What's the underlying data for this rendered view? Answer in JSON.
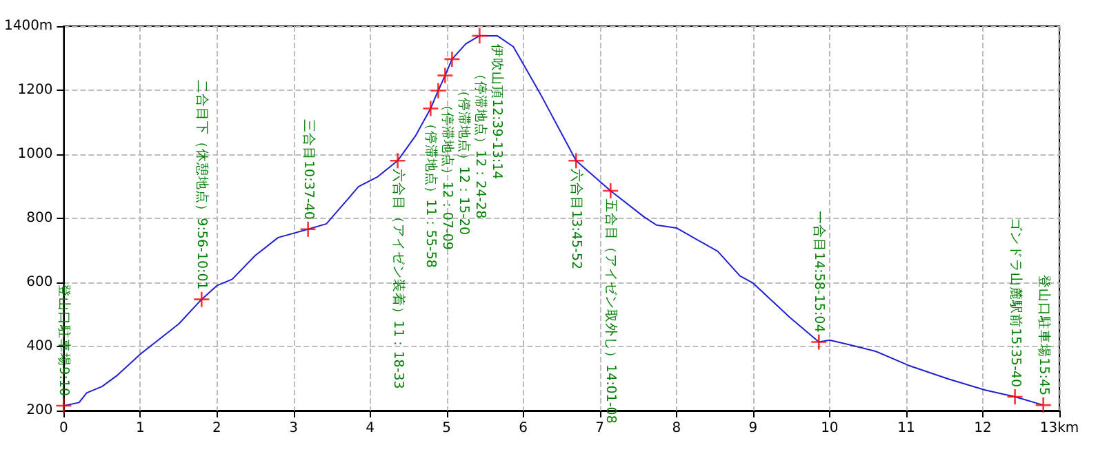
{
  "chart_data": {
    "type": "line",
    "xlim": [
      0,
      13
    ],
    "xticks": [
      0,
      1,
      2,
      3,
      4,
      5,
      6,
      7,
      8,
      9,
      10,
      11,
      12,
      {
        "value": 13,
        "label": "13km"
      }
    ],
    "ylim": [
      200,
      1400
    ],
    "yticks": [
      200,
      400,
      600,
      800,
      1000,
      1200,
      {
        "value": 1400,
        "label": "1400m"
      }
    ],
    "grid": true,
    "line_style": "solid",
    "series": [
      {
        "color": "#2020d0",
        "marker": "none",
        "x": [
          0,
          0.2,
          0.3,
          0.5,
          0.7,
          1.0,
          1.5,
          1.8,
          2.0,
          2.2,
          2.5,
          2.8,
          3.19,
          3.43,
          3.85,
          4.1,
          4.36,
          4.6,
          4.79,
          4.89,
          4.98,
          5.07,
          5.25,
          5.43,
          5.66,
          5.87,
          6.22,
          6.69,
          7.14,
          7.58,
          7.74,
          8.0,
          8.54,
          8.83,
          9.0,
          9.48,
          9.86,
          10.0,
          10.25,
          10.6,
          11.03,
          11.56,
          12.03,
          12.42,
          12.79
        ],
        "values": [
          215,
          225,
          255,
          275,
          310,
          376,
          470,
          547,
          590,
          610,
          684,
          740,
          766,
          783,
          899,
          930,
          980,
          1060,
          1143,
          1199,
          1246,
          1297,
          1345,
          1370,
          1370,
          1336,
          1190,
          980,
          886,
          804,
          779,
          770,
          697,
          620,
          598,
          491,
          414,
          420,
          406,
          385,
          341,
          298,
          264,
          243,
          217
        ]
      },
      {
        "type": "scatter",
        "color": "#ff0000",
        "marker": "cross",
        "x": [
          0,
          1.8,
          3.19,
          4.36,
          4.79,
          4.89,
          4.98,
          5.07,
          5.43,
          6.69,
          7.14,
          9.86,
          12.42,
          12.79
        ],
        "values": [
          215,
          547,
          766,
          980,
          1143,
          1199,
          1246,
          1297,
          1370,
          980,
          886,
          414,
          243,
          217
        ]
      }
    ],
    "annotations": [
      {
        "text": "登山口駐車場9:10",
        "x": 0,
        "y": 215
      },
      {
        "text": "二合目下（休憩地点）9:56-10:01",
        "x": 1.8,
        "y": 547
      },
      {
        "text": "三合目10:37-40",
        "x": 3.19,
        "y": 766
      },
      {
        "text": "六合目（アイゼン装着）11：18-33",
        "x": 4.36,
        "y": 980
      },
      {
        "text": "（停滞地点）11：55-58",
        "x": 4.79,
        "y": 1143
      },
      {
        "text": "（停滞地点）12：07-09",
        "x": 4.89,
        "y": 1199
      },
      {
        "text": "（停滞地点）12：15-20",
        "x": 4.98,
        "y": 1246
      },
      {
        "text": "（停滞地点）12：24-28",
        "x": 5.07,
        "y": 1297
      },
      {
        "text": "伊吹山頂12:39-13:14",
        "x": 5.43,
        "y": 1370
      },
      {
        "text": "六合目13:45-52",
        "x": 6.69,
        "y": 980
      },
      {
        "text": "五合目（アイゼン取外し）14:01-08",
        "x": 7.14,
        "y": 886
      },
      {
        "text": "一合目14:58-15:04",
        "x": 9.86,
        "y": 414
      },
      {
        "text": "ゴンドラ山麓駅前15:35-40",
        "x": 12.42,
        "y": 243
      },
      {
        "text": "登山口駐車場15:45",
        "x": 12.79,
        "y": 217
      }
    ]
  }
}
